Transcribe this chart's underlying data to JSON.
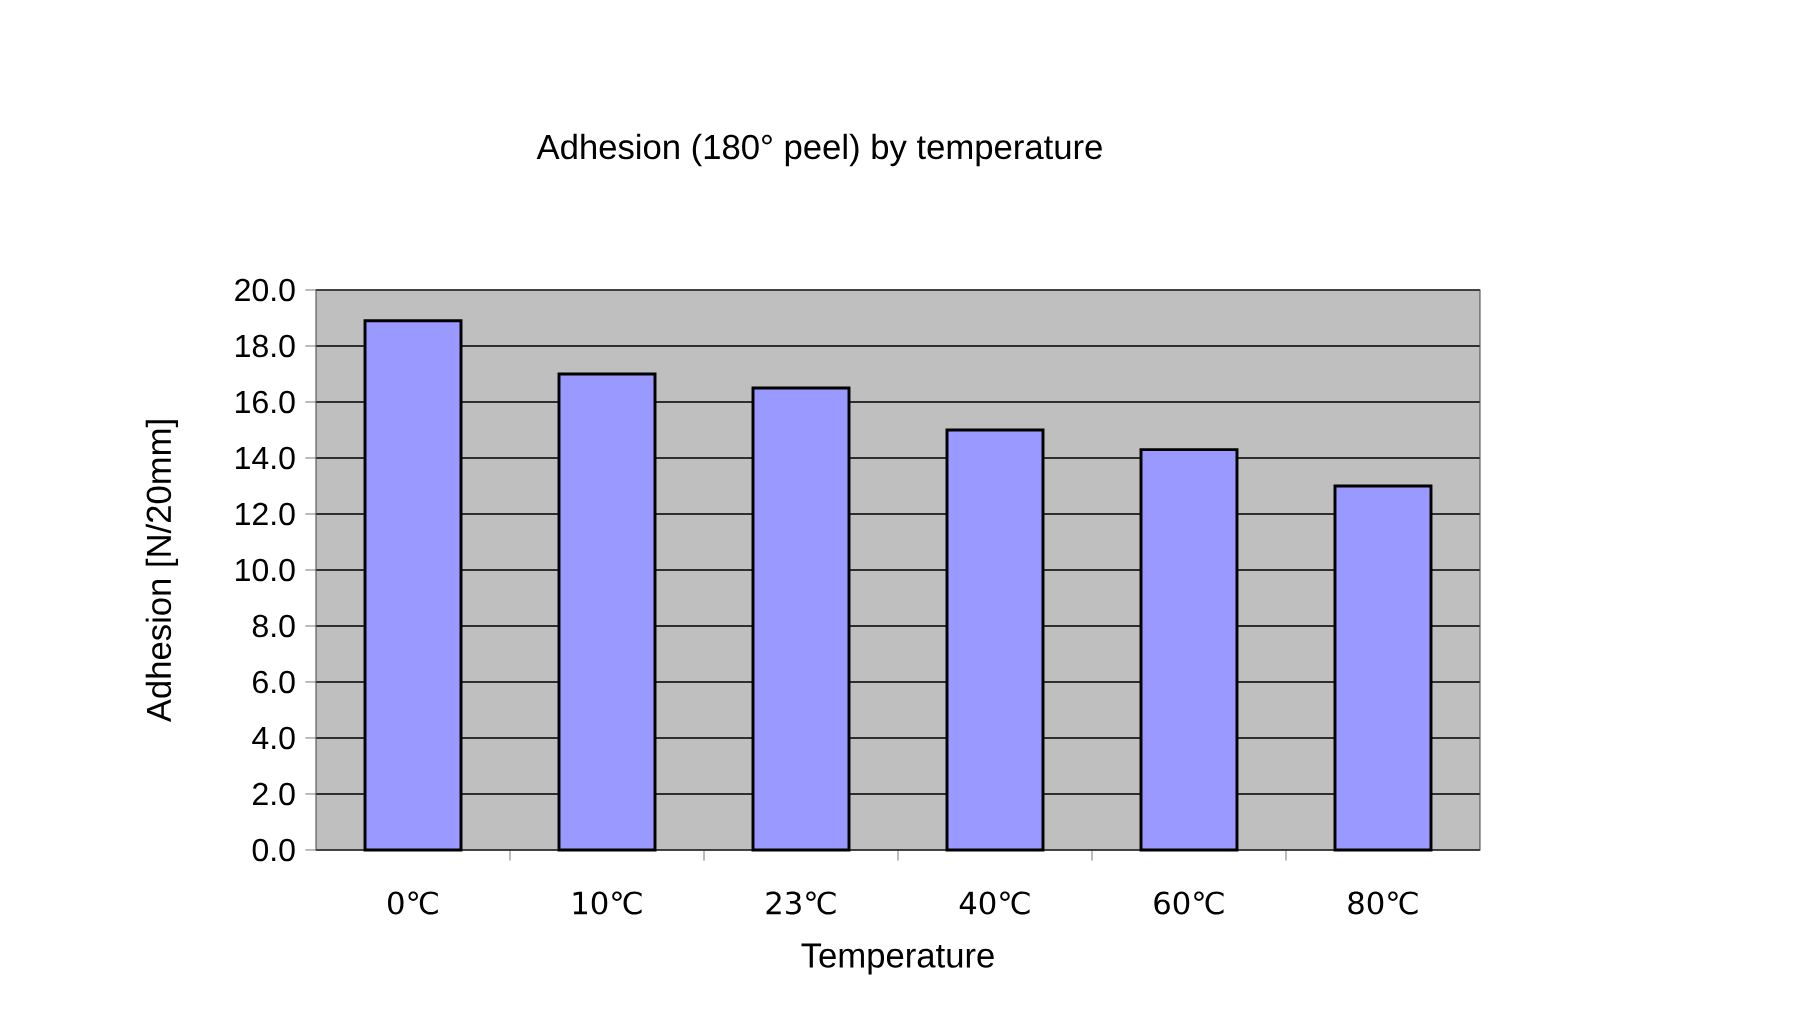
{
  "chart_data": {
    "type": "bar",
    "title": "Adhesion (180° peel) by temperature",
    "xlabel": "Temperature",
    "ylabel": "Adhesion [N/20mm]",
    "categories": [
      "0℃",
      "10℃",
      "23℃",
      "40℃",
      "60℃",
      "80℃"
    ],
    "values": [
      18.9,
      17.0,
      16.5,
      15.0,
      14.3,
      13.0
    ],
    "color": "#9999ff",
    "ylim": [
      0,
      20
    ],
    "yticks": [
      {
        "value": 0,
        "label": "0.0"
      },
      {
        "value": 2,
        "label": "2.0"
      },
      {
        "value": 4,
        "label": "4.0"
      },
      {
        "value": 6,
        "label": "6.0"
      },
      {
        "value": 8,
        "label": "8.0"
      },
      {
        "value": 10,
        "label": "10.0"
      },
      {
        "value": 12,
        "label": "12.0"
      },
      {
        "value": 14,
        "label": "14.0"
      },
      {
        "value": 16,
        "label": "16.0"
      },
      {
        "value": 18,
        "label": "18.0"
      },
      {
        "value": 20,
        "label": "20.0"
      }
    ],
    "grid": "y"
  }
}
